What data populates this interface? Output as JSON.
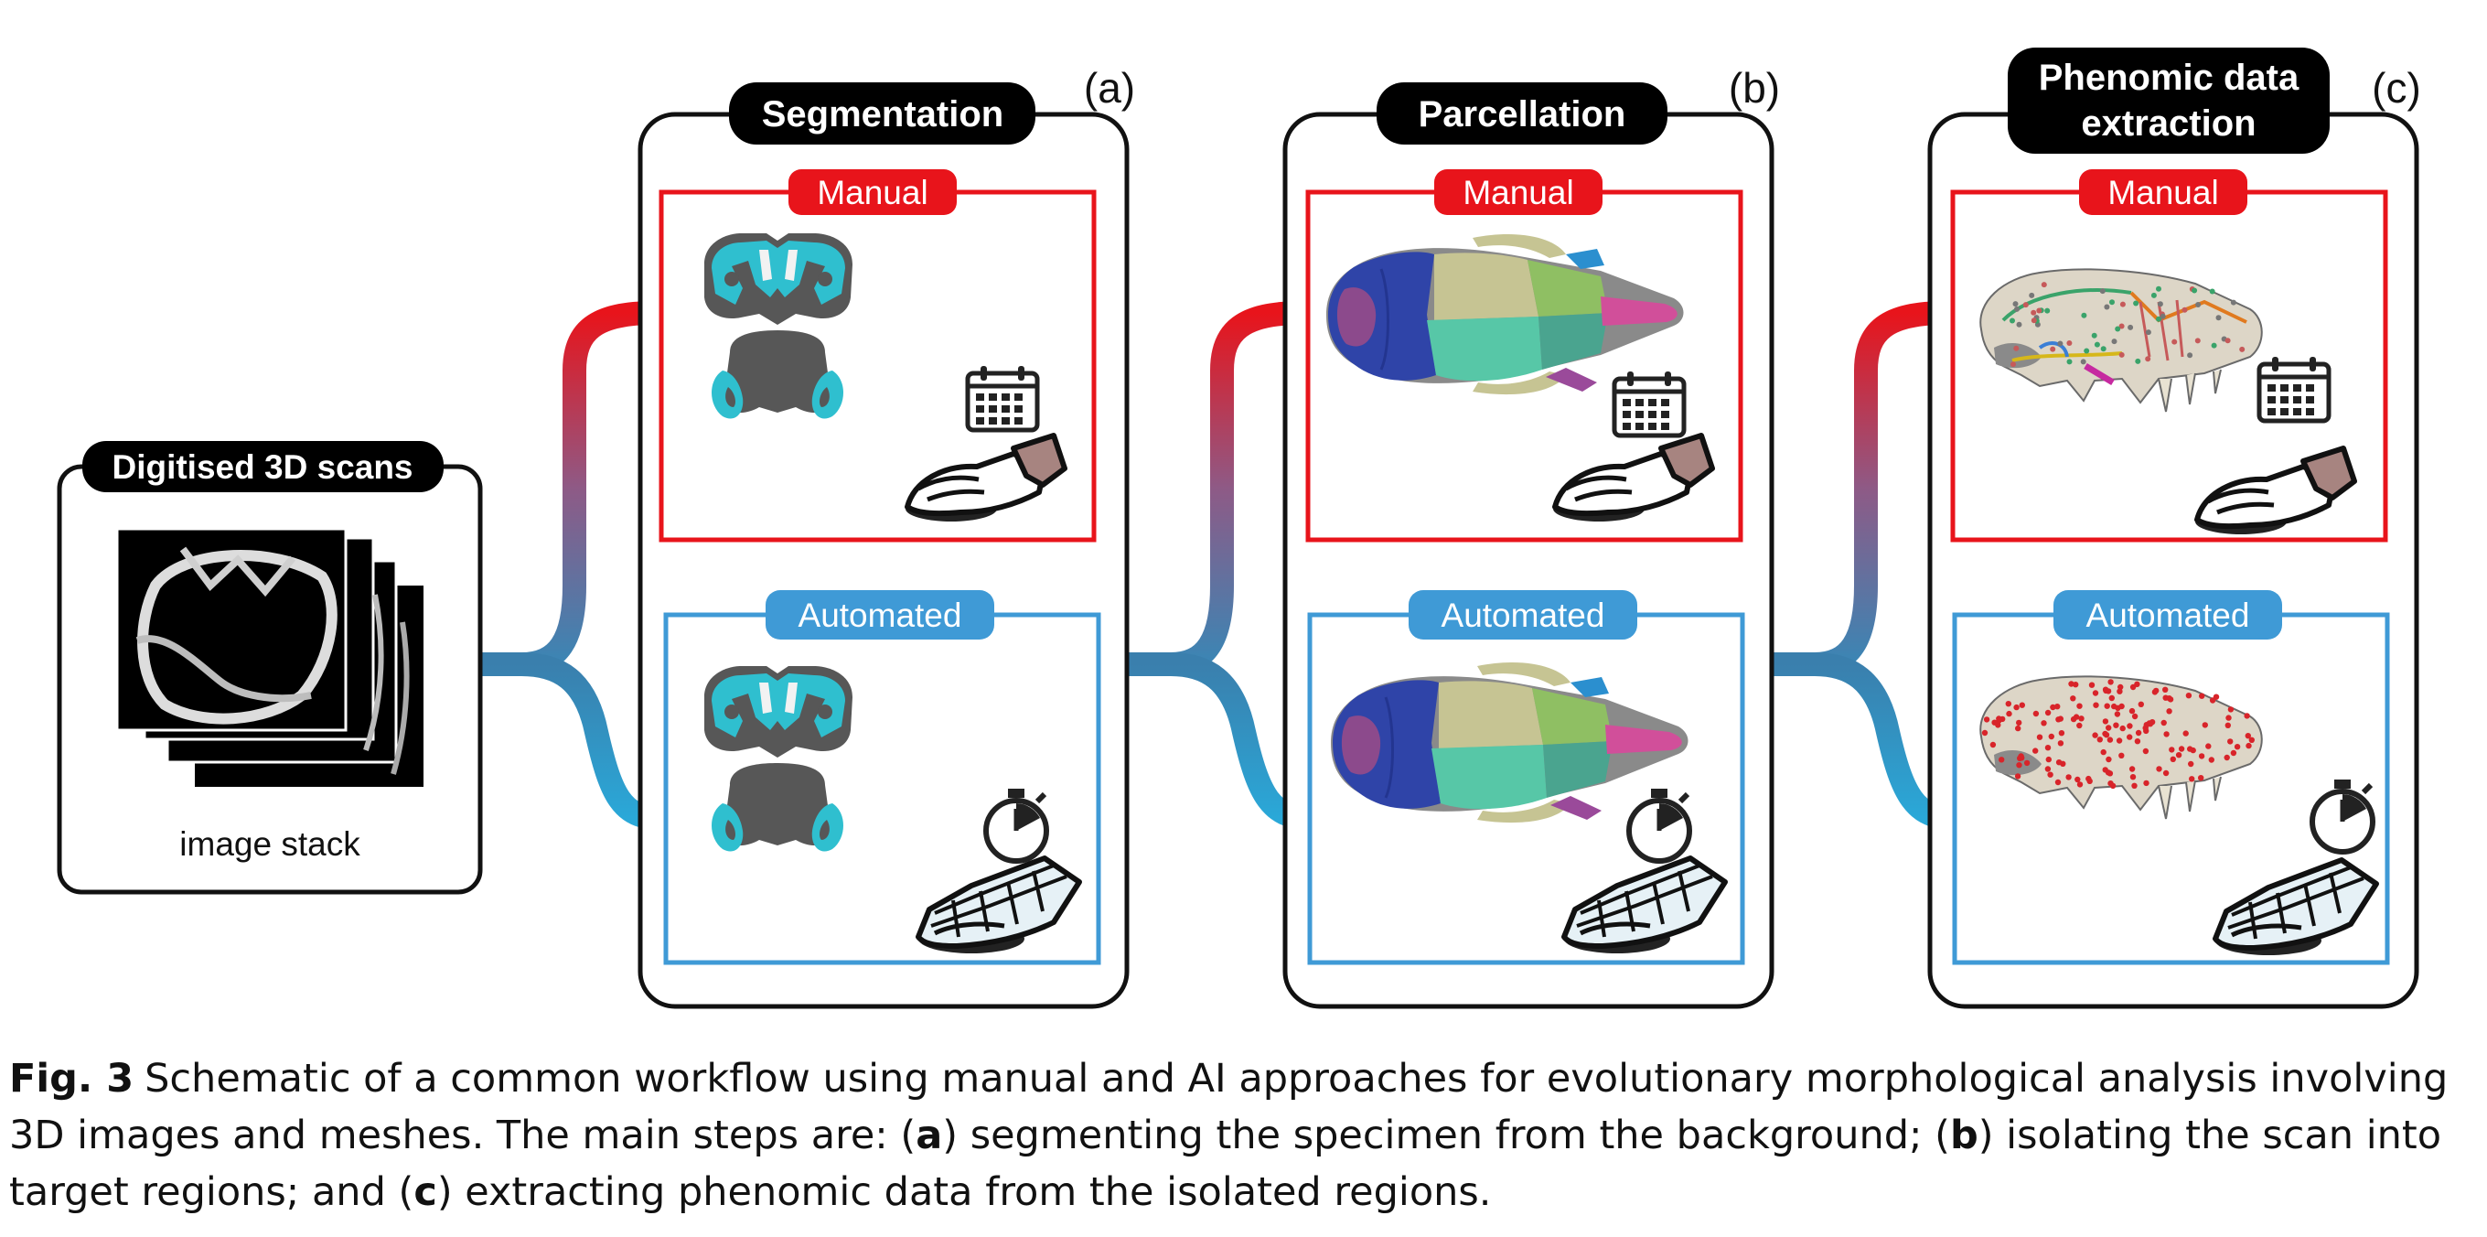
{
  "input_box": {
    "title": "Digitised 3D scans",
    "label": "image stack"
  },
  "stages": [
    {
      "title": "Segmentation",
      "letter": "(a)",
      "manual_label": "Manual",
      "automated_label": "Automated"
    },
    {
      "title": "Parcellation",
      "letter": "(b)",
      "manual_label": "Manual",
      "automated_label": "Automated"
    },
    {
      "title_line1": "Phenomic data",
      "title_line2": "extraction",
      "letter": "(c)",
      "manual_label": "Manual",
      "automated_label": "Automated"
    }
  ],
  "colors": {
    "manual": "#e8141b",
    "automated": "#3f9ad6",
    "flow_blue": "#3a8fbf",
    "teal": "#2db7c9",
    "frame": "#111111"
  },
  "icons": {
    "manual_time": "calendar-icon",
    "manual_effort": "human-hand-icon",
    "automated_time": "stopwatch-icon",
    "automated_effort": "robot-hand-icon"
  },
  "caption": {
    "label": "Fig. 3",
    "text_1": "Schematic of a common workflow using manual and AI approaches for evolutionary morphological analysis involving 3D images and meshes. The main steps are: (",
    "a": "a",
    "text_2": ") segmenting the specimen from the background; (",
    "b": "b",
    "text_3": ") isolating the scan into target regions; and (",
    "c": "c",
    "text_4": ") extracting phenomic data from the isolated regions."
  }
}
